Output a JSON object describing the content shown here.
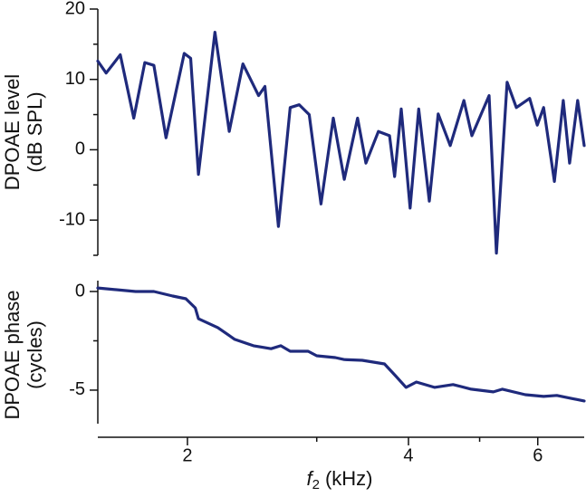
{
  "chart_data": [
    {
      "type": "line",
      "ylabel": [
        "DPOAE level",
        "(dB SPL)"
      ],
      "xscale": "log",
      "xlim": [
        1.51,
        6.94
      ],
      "x": [
        1.51,
        1.55,
        1.62,
        1.69,
        1.75,
        1.8,
        1.87,
        1.98,
        2.02,
        2.07,
        2.18,
        2.28,
        2.38,
        2.5,
        2.55,
        2.66,
        2.76,
        2.84,
        2.93,
        3.04,
        3.16,
        3.27,
        3.41,
        3.5,
        3.64,
        3.77,
        3.83,
        3.91,
        4.02,
        4.13,
        4.27,
        4.39,
        4.56,
        4.76,
        4.88,
        5.15,
        5.27,
        5.45,
        5.61,
        5.85,
        5.99,
        6.11,
        6.32,
        6.5,
        6.63,
        6.8,
        6.94
      ],
      "series": [
        {
          "color": "#1f2a7c",
          "values": [
            12.6,
            10.9,
            13.5,
            4.5,
            12.4,
            12,
            1.7,
            13.7,
            13,
            -3.5,
            16.7,
            2.6,
            12.2,
            7.7,
            9,
            -10.9,
            6,
            6.4,
            5,
            -7.7,
            4.5,
            -4.2,
            4.5,
            -1.9,
            2.6,
            2,
            -3.8,
            5.8,
            -8.3,
            5.8,
            -7.3,
            5.1,
            0.6,
            7,
            2,
            7.7,
            -14.7,
            9.6,
            6,
            7.3,
            3.5,
            6,
            -4.5,
            7,
            -1.9,
            7,
            0.6
          ]
        }
      ],
      "ylim": [
        -15,
        20
      ],
      "yticks": [
        20,
        10,
        0,
        -10
      ],
      "yminorticks": [
        15,
        5,
        -5,
        -15
      ]
    },
    {
      "type": "line",
      "ylabel": [
        "DPOAE phase",
        "(cycles)"
      ],
      "xlabel": {
        "symbol": "f",
        "subscript": "2",
        "unit": "(kHz)"
      },
      "xscale": "log",
      "xlim": [
        1.51,
        6.94
      ],
      "xticks": [
        2,
        4,
        6
      ],
      "xminorticks": [
        3,
        5
      ],
      "x": [
        1.51,
        1.7,
        1.8,
        1.91,
        1.99,
        2.05,
        2.07,
        2.2,
        2.32,
        2.46,
        2.6,
        2.68,
        2.76,
        2.92,
        3.0,
        3.18,
        3.27,
        3.46,
        3.71,
        3.84,
        3.97,
        4.1,
        4.34,
        4.6,
        4.87,
        5.22,
        5.37,
        5.77,
        6.11,
        6.37,
        6.65,
        6.94
      ],
      "series": [
        {
          "color": "#1f2a7c",
          "values": [
            0.18,
            0,
            0,
            -0.23,
            -0.37,
            -0.83,
            -1.38,
            -1.83,
            -2.43,
            -2.75,
            -2.9,
            -2.75,
            -3.03,
            -3.03,
            -3.26,
            -3.35,
            -3.45,
            -3.49,
            -3.67,
            -4.27,
            -4.86,
            -4.59,
            -4.86,
            -4.72,
            -4.95,
            -5.09,
            -4.95,
            -5.23,
            -5.32,
            -5.27,
            -5.41,
            -5.55
          ]
        }
      ],
      "ylim": [
        -6.7,
        0.55
      ],
      "yticks": [
        0,
        -5
      ],
      "yminorticks": [
        -2.5
      ]
    }
  ]
}
